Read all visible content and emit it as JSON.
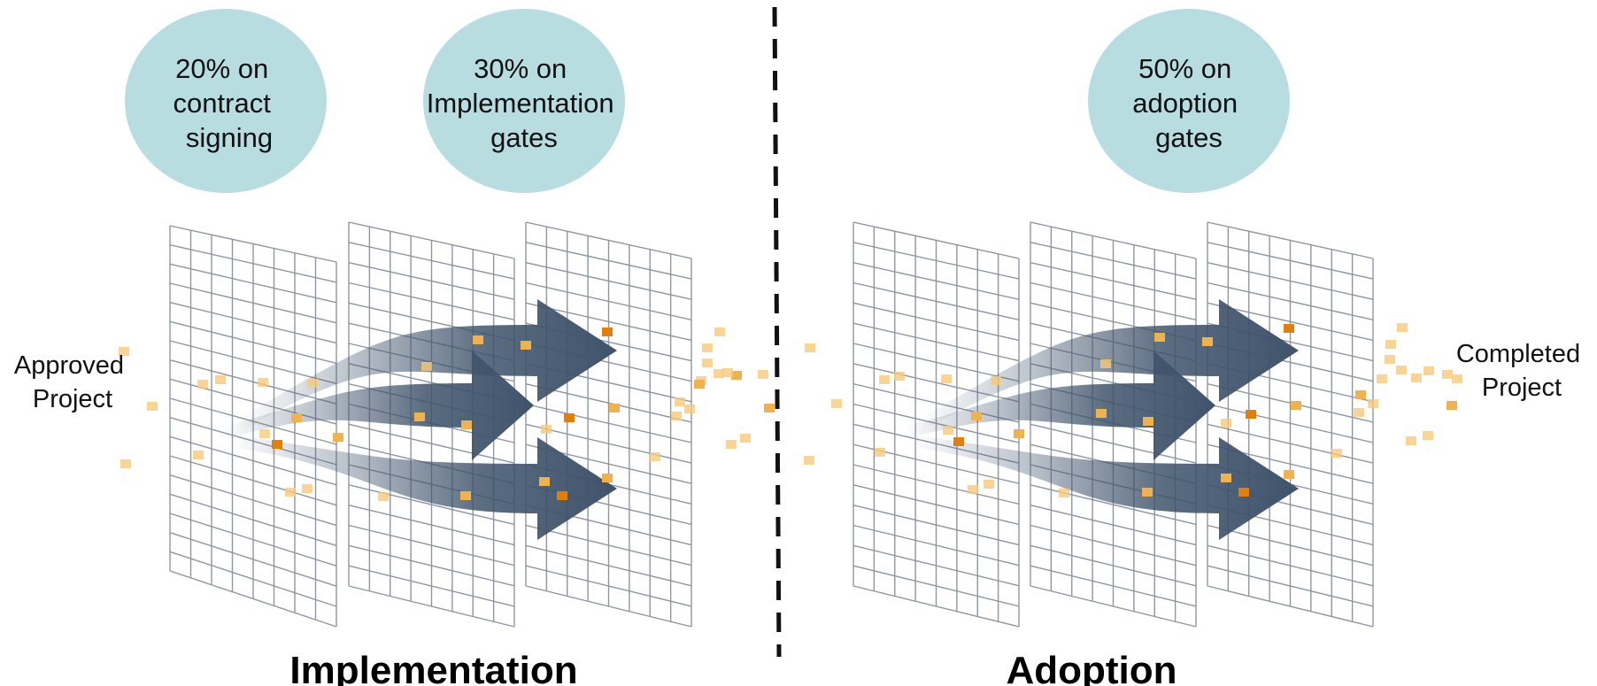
{
  "colors": {
    "bubble_fill": "#b7dde1",
    "grid_stroke": "#8e96a3",
    "arrow_fill": "#3f536b",
    "square_light": "#f7c97a",
    "square_mid": "#efb24e",
    "square_dark": "#e07f0c",
    "divider": "#111111"
  },
  "bubbles": {
    "contract": {
      "line1": "20% on",
      "line2": "contract",
      "line3": "signing"
    },
    "implementation_gates": {
      "line1": "30% on",
      "line2": "Implementation",
      "line3": "gates"
    },
    "adoption_gates": {
      "line1": "50% on",
      "line2": "adoption",
      "line3": "gates"
    }
  },
  "endpoints": {
    "start": {
      "line1": "Approved",
      "line2": "Project"
    },
    "end": {
      "line1": "Completed",
      "line2": "Project"
    }
  },
  "phases": {
    "left": "Implementation",
    "right": "Adoption"
  },
  "icons": {
    "gate_panel": "grid-gate-icon",
    "flow_arrow": "curved-arrow-icon",
    "data_square": "square-dot-icon"
  }
}
